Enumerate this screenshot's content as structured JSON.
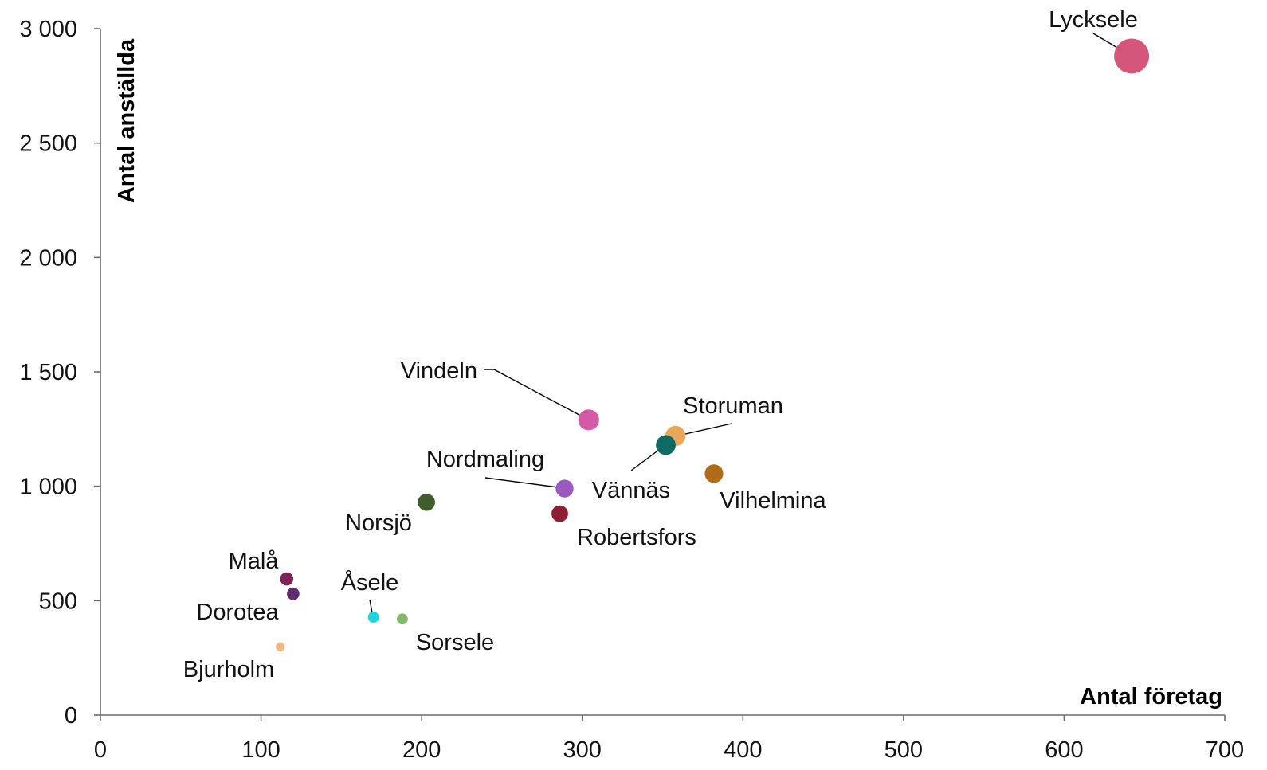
{
  "chart_data": {
    "type": "scatter",
    "title": "",
    "xlabel": "Antal företag",
    "ylabel": "Antal anställda",
    "xlim": [
      0,
      700
    ],
    "ylim": [
      0,
      3000
    ],
    "x_ticks": [
      0,
      100,
      200,
      300,
      400,
      500,
      600,
      700
    ],
    "x_tick_labels": [
      "0",
      "100",
      "200",
      "300",
      "400",
      "500",
      "600",
      "700"
    ],
    "y_ticks": [
      0,
      500,
      1000,
      1500,
      2000,
      2500,
      3000
    ],
    "y_tick_labels": [
      "0",
      "500",
      "1 000",
      "1 500",
      "2 000",
      "2 500",
      "3 000"
    ],
    "grid": false,
    "legend": "none",
    "bubble_size_encoding": "bubble area grows with Antal anställda",
    "points": [
      {
        "name": "Lycksele",
        "x": 642,
        "y": 2880,
        "color": "#d4567a"
      },
      {
        "name": "Vindeln",
        "x": 304,
        "y": 1290,
        "color": "#d45aa6"
      },
      {
        "name": "Storuman",
        "x": 358,
        "y": 1220,
        "color": "#e8a85a"
      },
      {
        "name": "Vännäs",
        "x": 352,
        "y": 1180,
        "color": "#0d6b63"
      },
      {
        "name": "Vilhelmina",
        "x": 382,
        "y": 1055,
        "color": "#b06b18"
      },
      {
        "name": "Nordmaling",
        "x": 289,
        "y": 990,
        "color": "#9b59c0"
      },
      {
        "name": "Norsjö",
        "x": 203,
        "y": 930,
        "color": "#3d5e2c"
      },
      {
        "name": "Robertsfors",
        "x": 286,
        "y": 880,
        "color": "#8e1e33"
      },
      {
        "name": "Malå",
        "x": 116,
        "y": 595,
        "color": "#7a2355"
      },
      {
        "name": "Dorotea",
        "x": 120,
        "y": 530,
        "color": "#5e2d6e"
      },
      {
        "name": "Åsele",
        "x": 170,
        "y": 428,
        "color": "#19d6e0"
      },
      {
        "name": "Sorsele",
        "x": 188,
        "y": 420,
        "color": "#82b86a"
      },
      {
        "name": "Bjurholm",
        "x": 112,
        "y": 298,
        "color": "#efb883"
      }
    ]
  }
}
